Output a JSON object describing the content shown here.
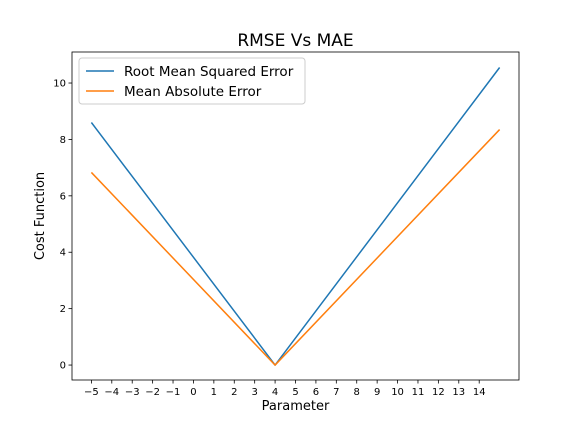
{
  "chart_data": {
    "type": "line",
    "title": "RMSE Vs MAE",
    "xlabel": "Parameter",
    "ylabel": "Cost Function",
    "xlim": [
      -5.95,
      15.95
    ],
    "ylim": [
      -0.53,
      11.1
    ],
    "x_ticks": [
      -5,
      -4,
      -3,
      -2,
      -1,
      0,
      1,
      2,
      3,
      4,
      5,
      6,
      7,
      8,
      9,
      10,
      11,
      12,
      13,
      14
    ],
    "x_tick_labels": [
      "−5",
      "−4",
      "−3",
      "−2",
      "−1",
      "0",
      "1",
      "2",
      "3",
      "4",
      "5",
      "6",
      "7",
      "8",
      "9",
      "10",
      "11",
      "12",
      "13",
      "14"
    ],
    "y_ticks": [
      0,
      2,
      4,
      6,
      8,
      10
    ],
    "y_tick_labels": [
      "0",
      "2",
      "4",
      "6",
      "8",
      "10"
    ],
    "grid": false,
    "legend_position": "top-left",
    "series": [
      {
        "name": "Root Mean Squared Error",
        "color": "#1f77b4",
        "x": [
          -5,
          4,
          15
        ],
        "y": [
          8.6,
          0.0,
          10.55
        ]
      },
      {
        "name": "Mean Absolute Error",
        "color": "#ff7f0e",
        "x": [
          -5,
          4,
          15
        ],
        "y": [
          6.83,
          0.0,
          8.35
        ]
      }
    ]
  }
}
